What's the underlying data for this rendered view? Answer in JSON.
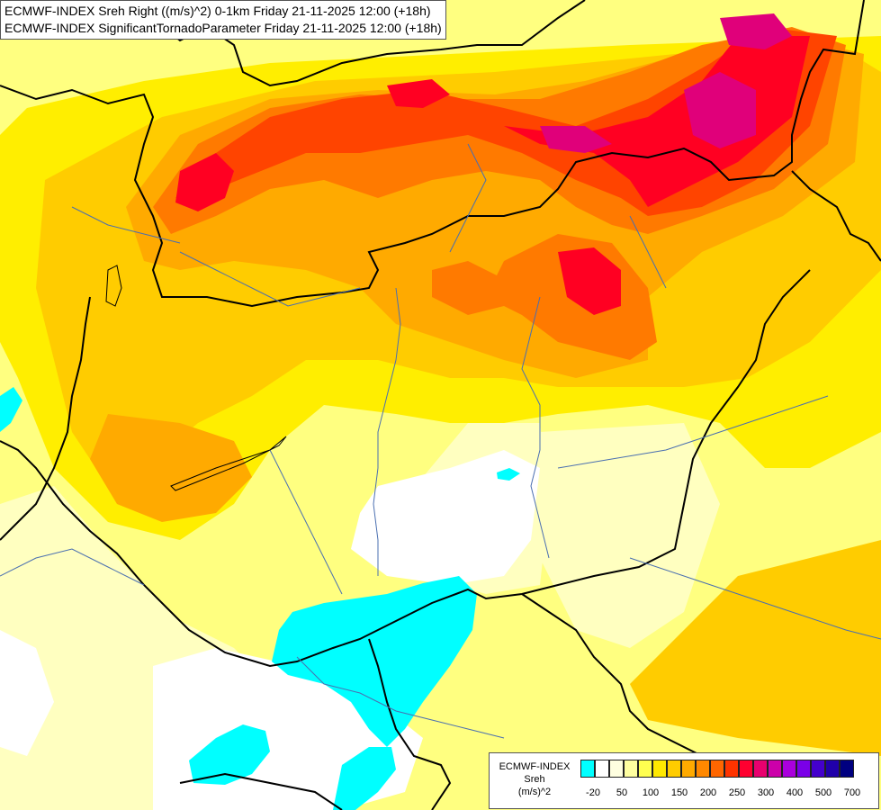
{
  "title": {
    "line1": "ECMWF-INDEX Sreh Right ((m/s)^2) 0-1km Friday 21-11-2025 12:00 (+18h)",
    "line2": "ECMWF-INDEX SignificantTornadoParameter Friday 21-11-2025 12:00 (+18h)"
  },
  "legend": {
    "line1": "ECMWF-INDEX",
    "line2": "Sreh",
    "line3": "(m/s)^2",
    "colors": [
      "#00ffff",
      "#ffffff",
      "#ffffe0",
      "#ffffa0",
      "#ffff50",
      "#ffe800",
      "#ffcc00",
      "#ffaa00",
      "#ff8800",
      "#ff6600",
      "#ff3300",
      "#ff0030",
      "#e8006e",
      "#cc00aa",
      "#aa00dd",
      "#7a00e8",
      "#4400cc",
      "#2000aa",
      "#000080"
    ],
    "ticks": [
      "-20",
      "50",
      "100",
      "150",
      "200",
      "250",
      "300",
      "400",
      "500",
      "700"
    ]
  },
  "map": {
    "colors": {
      "cyan": "#00ffff",
      "white": "#ffffff",
      "pale": "#ffffc0",
      "light_yellow": "#ffff80",
      "yellow": "#ffee00",
      "gold": "#ffcc00",
      "orange": "#ffaa00",
      "dark_orange": "#ff7a00",
      "red_orange": "#ff4400",
      "red": "#ff0022",
      "magenta": "#e0007a",
      "purple": "#c000a8",
      "border": "#000000",
      "river": "#4a6fb0"
    }
  }
}
